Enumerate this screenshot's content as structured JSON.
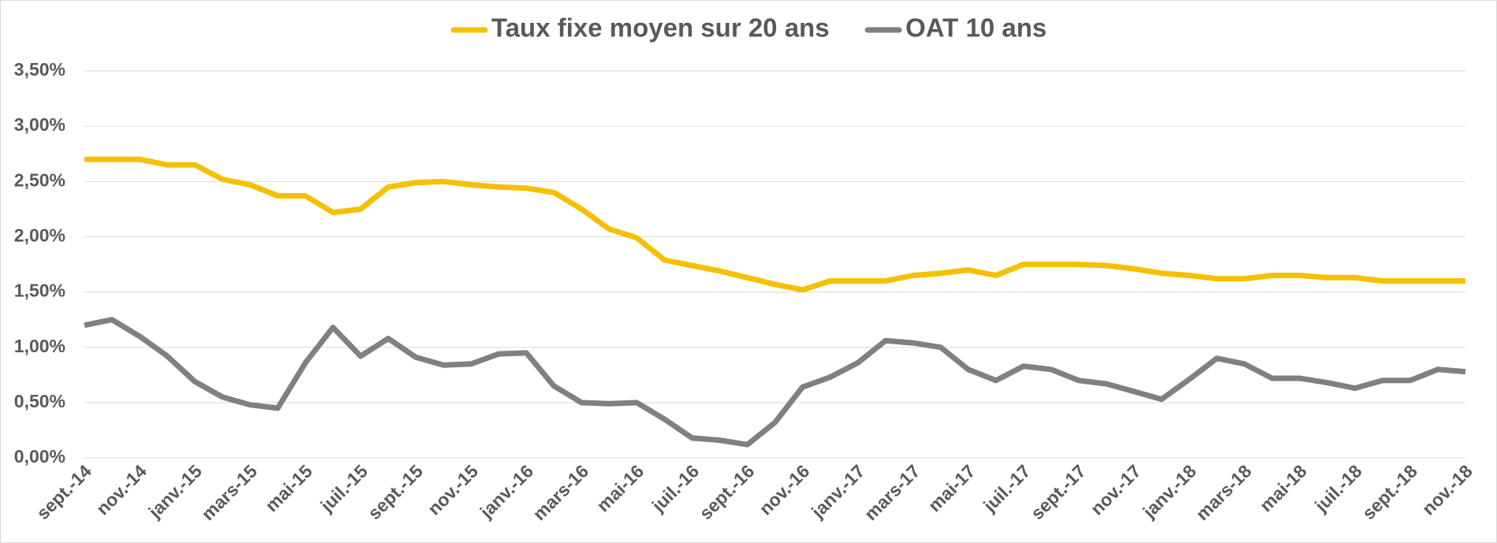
{
  "chart_data": {
    "type": "line",
    "categories": [
      "sept.-14",
      null,
      "nov.-14",
      null,
      "janv.-15",
      null,
      "mars-15",
      null,
      "mai-15",
      null,
      "juil.-15",
      null,
      "sept.-15",
      null,
      "nov.-15",
      null,
      "janv.-16",
      null,
      "mars-16",
      null,
      "mai-16",
      null,
      "juil.-16",
      null,
      "sept.-16",
      null,
      "nov.-16",
      null,
      "janv.-17",
      null,
      "mars-17",
      null,
      "mai-17",
      null,
      "juil.-17",
      null,
      "sept.-17",
      null,
      "nov.-17",
      null,
      "janv.-18",
      null,
      "mars-18",
      null,
      "mai-18",
      null,
      "juil.-18",
      null,
      "sept.-18",
      null,
      "nov.-18"
    ],
    "series": [
      {
        "name": "Taux fixe moyen sur 20 ans",
        "color": "#f5c000",
        "values": [
          2.7,
          2.7,
          2.7,
          2.65,
          2.65,
          2.52,
          2.47,
          2.37,
          2.37,
          2.22,
          2.25,
          2.45,
          2.49,
          2.5,
          2.47,
          2.45,
          2.44,
          2.4,
          2.25,
          2.07,
          1.99,
          1.79,
          1.74,
          1.69,
          1.63,
          1.57,
          1.52,
          1.6,
          1.6,
          1.6,
          1.65,
          1.67,
          1.7,
          1.65,
          1.75,
          1.75,
          1.75,
          1.74,
          1.71,
          1.67,
          1.65,
          1.62,
          1.62,
          1.65,
          1.65,
          1.63,
          1.63,
          1.6,
          1.6,
          1.6,
          1.6
        ]
      },
      {
        "name": "OAT 10 ans",
        "color": "#808080",
        "values": [
          1.2,
          1.25,
          1.1,
          0.92,
          0.69,
          0.55,
          0.48,
          0.45,
          0.86,
          1.18,
          0.92,
          1.08,
          0.91,
          0.84,
          0.85,
          0.94,
          0.95,
          0.65,
          0.5,
          0.49,
          0.5,
          0.35,
          0.18,
          0.16,
          0.12,
          0.32,
          0.64,
          0.73,
          0.86,
          1.06,
          1.04,
          1.0,
          0.8,
          0.7,
          0.83,
          0.8,
          0.7,
          0.67,
          0.6,
          0.53,
          0.71,
          0.9,
          0.85,
          0.72,
          0.72,
          0.68,
          0.63,
          0.7,
          0.7,
          0.8,
          0.78
        ]
      }
    ],
    "ylim": [
      0,
      3.5
    ],
    "yticks": [
      {
        "value": 0,
        "label": "0,00%"
      },
      {
        "value": 0.5,
        "label": "0,50%"
      },
      {
        "value": 1,
        "label": "1,00%"
      },
      {
        "value": 1.5,
        "label": "1,50%"
      },
      {
        "value": 2,
        "label": "2,00%"
      },
      {
        "value": 2.5,
        "label": "2,50%"
      },
      {
        "value": 3,
        "label": "3,00%"
      },
      {
        "value": 3.5,
        "label": "3,50%"
      }
    ],
    "grid": true,
    "legend": "top"
  }
}
